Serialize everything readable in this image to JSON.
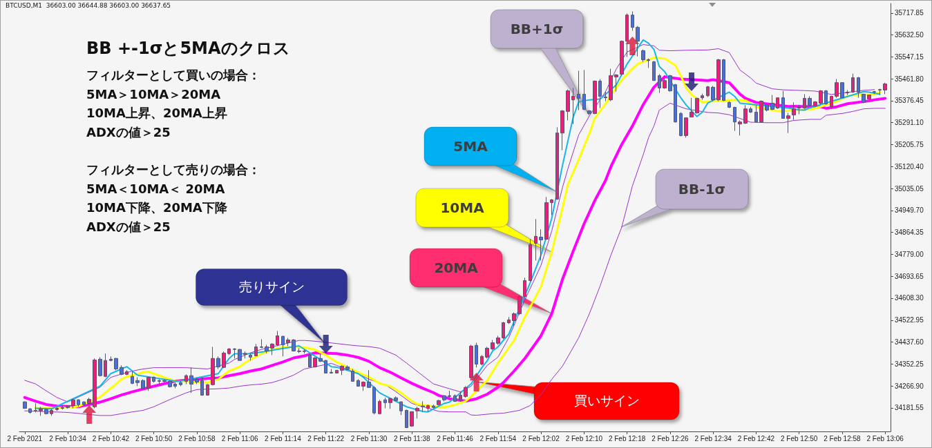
{
  "chart_data": {
    "type": "candlestick",
    "title": "BB +-1σと5MAのクロス",
    "annotations": [
      "BTCUSD,M1  36603.00 36644.88 36603.00 36637.65",
      "フィルターとして買いの場合：\n5MA＞10MA＞20MA\n10MA上昇、20MA上昇\nADXの値＞25",
      "フィルターとして売りの場合：\n5MA＜10MA＜ 20MA\n10MA下降、20MA下降\nADXの値＞25",
      "5MA",
      "10MA",
      "20MA",
      "BB+1σ",
      "BB-1σ",
      "売りサイン",
      "買いサイン"
    ],
    "xlim": [
      "2021-02-02T10:25",
      "2021-02-02T13:07"
    ],
    "ylim": [
      34090,
      35755
    ],
    "xticks": [
      {
        "value": "2021-02-02T10:26",
        "label": "2 Feb 2021"
      },
      {
        "value": "2021-02-02T10:34",
        "label": "2 Feb 10:34"
      },
      {
        "value": "2021-02-02T10:42",
        "label": "2 Feb 10:42"
      },
      {
        "value": "2021-02-02T10:50",
        "label": "2 Feb 10:50"
      },
      {
        "value": "2021-02-02T10:58",
        "label": "2 Feb 10:58"
      },
      {
        "value": "2021-02-02T11:06",
        "label": "2 Feb 11:06"
      },
      {
        "value": "2021-02-02T11:14",
        "label": "2 Feb 11:14"
      },
      {
        "value": "2021-02-02T11:22",
        "label": "2 Feb 11:22"
      },
      {
        "value": "2021-02-02T11:30",
        "label": "2 Feb 11:30"
      },
      {
        "value": "2021-02-02T11:38",
        "label": "2 Feb 11:38"
      },
      {
        "value": "2021-02-02T11:46",
        "label": "2 Feb 11:46"
      },
      {
        "value": "2021-02-02T11:54",
        "label": "2 Feb 11:54"
      },
      {
        "value": "2021-02-02T12:02",
        "label": "2 Feb 12:02"
      },
      {
        "value": "2021-02-02T12:10",
        "label": "2 Feb 12:10"
      },
      {
        "value": "2021-02-02T12:18",
        "label": "2 Feb 12:18"
      },
      {
        "value": "2021-02-02T12:26",
        "label": "2 Feb 12:26"
      },
      {
        "value": "2021-02-02T12:34",
        "label": "2 Feb 12:34"
      },
      {
        "value": "2021-02-02T12:42",
        "label": "2 Feb 12:42"
      },
      {
        "value": "2021-02-02T12:50",
        "label": "2 Feb 12:50"
      },
      {
        "value": "2021-02-02T12:58",
        "label": "2 Feb 12:58"
      },
      {
        "value": "2021-02-02T13:06",
        "label": "2 Feb 13:06"
      }
    ],
    "yticks": [
      34181.55,
      {
        "value": 34266.9,
        "label": "34266.90"
      },
      34352.25,
      {
        "value": 34437.6,
        "label": "34437.60"
      },
      34522.95,
      {
        "value": 34608.3,
        "label": "34608.30"
      },
      34693.65,
      {
        "value": 34779,
        "label": "34779.00"
      },
      34864.35,
      {
        "value": 34949.7,
        "label": "34949.70"
      },
      35035.05,
      {
        "value": 35120.4,
        "label": "35120.40"
      },
      35205.75,
      {
        "value": 35291.1,
        "label": "35291.10"
      },
      35376.45,
      {
        "value": 35461.8,
        "label": "35461.80"
      },
      35547.15,
      {
        "value": 35632.5,
        "label": "35632.50"
      },
      35717.85
    ],
    "x": [
      "2021-02-02T10:26",
      "2021-02-02T10:27",
      "2021-02-02T10:28",
      "2021-02-02T10:29",
      "2021-02-02T10:30",
      "2021-02-02T10:31",
      "2021-02-02T10:32",
      "2021-02-02T10:33",
      "2021-02-02T10:34",
      "2021-02-02T10:35",
      "2021-02-02T10:36",
      "2021-02-02T10:37",
      "2021-02-02T10:38",
      "2021-02-02T10:39",
      "2021-02-02T10:40",
      "2021-02-02T10:41",
      "2021-02-02T10:42",
      "2021-02-02T10:43",
      "2021-02-02T10:44",
      "2021-02-02T10:45",
      "2021-02-02T10:46",
      "2021-02-02T10:47",
      "2021-02-02T10:48",
      "2021-02-02T10:49",
      "2021-02-02T10:50",
      "2021-02-02T10:51",
      "2021-02-02T10:52",
      "2021-02-02T10:53",
      "2021-02-02T10:54",
      "2021-02-02T10:55",
      "2021-02-02T10:56",
      "2021-02-02T10:57",
      "2021-02-02T10:58",
      "2021-02-02T10:59",
      "2021-02-02T11:00",
      "2021-02-02T11:01",
      "2021-02-02T11:02",
      "2021-02-02T11:03",
      "2021-02-02T11:04",
      "2021-02-02T11:05",
      "2021-02-02T11:06",
      "2021-02-02T11:07",
      "2021-02-02T11:08",
      "2021-02-02T11:09",
      "2021-02-02T11:10",
      "2021-02-02T11:11",
      "2021-02-02T11:12",
      "2021-02-02T11:13",
      "2021-02-02T11:14",
      "2021-02-02T11:15",
      "2021-02-02T11:16",
      "2021-02-02T11:17",
      "2021-02-02T11:18",
      "2021-02-02T11:19",
      "2021-02-02T11:20",
      "2021-02-02T11:21",
      "2021-02-02T11:22",
      "2021-02-02T11:23",
      "2021-02-02T11:24",
      "2021-02-02T11:25",
      "2021-02-02T11:26",
      "2021-02-02T11:27",
      "2021-02-02T11:28",
      "2021-02-02T11:29",
      "2021-02-02T11:30",
      "2021-02-02T11:31",
      "2021-02-02T11:32",
      "2021-02-02T11:33",
      "2021-02-02T11:34",
      "2021-02-02T11:35",
      "2021-02-02T11:36",
      "2021-02-02T11:37",
      "2021-02-02T11:38",
      "2021-02-02T11:39",
      "2021-02-02T11:40",
      "2021-02-02T11:41",
      "2021-02-02T11:42",
      "2021-02-02T11:43",
      "2021-02-02T11:44",
      "2021-02-02T11:45",
      "2021-02-02T11:46",
      "2021-02-02T11:47",
      "2021-02-02T11:48",
      "2021-02-02T11:49",
      "2021-02-02T11:50",
      "2021-02-02T11:51",
      "2021-02-02T11:52",
      "2021-02-02T11:53",
      "2021-02-02T11:54",
      "2021-02-02T11:55",
      "2021-02-02T11:56",
      "2021-02-02T11:57",
      "2021-02-02T11:58",
      "2021-02-02T11:59",
      "2021-02-02T12:00",
      "2021-02-02T12:01",
      "2021-02-02T12:02",
      "2021-02-02T12:03",
      "2021-02-02T12:04",
      "2021-02-02T12:05",
      "2021-02-02T12:06",
      "2021-02-02T12:07",
      "2021-02-02T12:08",
      "2021-02-02T12:09",
      "2021-02-02T12:10",
      "2021-02-02T12:11",
      "2021-02-02T12:12",
      "2021-02-02T12:13",
      "2021-02-02T12:14",
      "2021-02-02T12:15",
      "2021-02-02T12:16",
      "2021-02-02T12:17",
      "2021-02-02T12:18",
      "2021-02-02T12:19",
      "2021-02-02T12:20",
      "2021-02-02T12:21",
      "2021-02-02T12:22",
      "2021-02-02T12:23",
      "2021-02-02T12:24",
      "2021-02-02T12:25",
      "2021-02-02T12:26",
      "2021-02-02T12:27",
      "2021-02-02T12:28",
      "2021-02-02T12:29",
      "2021-02-02T12:30",
      "2021-02-02T12:31",
      "2021-02-02T12:32",
      "2021-02-02T12:33",
      "2021-02-02T12:34",
      "2021-02-02T12:35",
      "2021-02-02T12:36",
      "2021-02-02T12:37",
      "2021-02-02T12:38",
      "2021-02-02T12:39",
      "2021-02-02T12:40",
      "2021-02-02T12:41",
      "2021-02-02T12:42",
      "2021-02-02T12:43",
      "2021-02-02T12:44",
      "2021-02-02T12:45",
      "2021-02-02T12:46",
      "2021-02-02T12:47",
      "2021-02-02T12:48",
      "2021-02-02T12:49",
      "2021-02-02T12:50",
      "2021-02-02T12:51",
      "2021-02-02T12:52",
      "2021-02-02T12:53",
      "2021-02-02T12:54",
      "2021-02-02T12:55",
      "2021-02-02T12:56",
      "2021-02-02T12:57",
      "2021-02-02T12:58",
      "2021-02-02T12:59",
      "2021-02-02T13:00",
      "2021-02-02T13:01",
      "2021-02-02T13:02",
      "2021-02-02T13:03",
      "2021-02-02T13:04",
      "2021-02-02T13:05",
      "2021-02-02T13:06"
    ],
    "ohlc": [
      [
        34205,
        34207,
        34178,
        34180
      ],
      [
        34178,
        34180,
        34159,
        34164
      ],
      [
        34172,
        34199,
        34164,
        34170
      ],
      [
        34170,
        34186,
        34151,
        34178
      ],
      [
        34175,
        34180,
        34156,
        34159
      ],
      [
        34159,
        34178,
        34151,
        34172
      ],
      [
        34175,
        34186,
        34170,
        34180
      ],
      [
        34180,
        34189,
        34175,
        34183
      ],
      [
        34183,
        34191,
        34178,
        34189
      ],
      [
        34191,
        34218,
        34180,
        34213
      ],
      [
        34213,
        34215,
        34186,
        34194
      ],
      [
        34205,
        34207,
        34191,
        34194
      ],
      [
        34199,
        34221,
        34194,
        34215
      ],
      [
        34186,
        34374,
        34180,
        34368
      ],
      [
        34371,
        34379,
        34304,
        34307
      ],
      [
        34304,
        34393,
        34301,
        34366
      ],
      [
        34366,
        34382,
        34363,
        34371
      ],
      [
        34374,
        34376,
        34328,
        34333
      ],
      [
        34339,
        34347,
        34309,
        34312
      ],
      [
        34312,
        34328,
        34309,
        34323
      ],
      [
        34304,
        34325,
        34274,
        34277
      ],
      [
        34288,
        34301,
        34266,
        34280
      ],
      [
        34288,
        34293,
        34258,
        34258
      ],
      [
        34258,
        34301,
        34248,
        34301
      ],
      [
        34301,
        34304,
        34280,
        34285
      ],
      [
        34285,
        34293,
        34274,
        34288
      ],
      [
        34288,
        34293,
        34280,
        34285
      ],
      [
        34285,
        34288,
        34261,
        34264
      ],
      [
        34274,
        34280,
        34258,
        34266
      ],
      [
        34280,
        34285,
        34266,
        34272
      ],
      [
        34285,
        34312,
        34274,
        34307
      ],
      [
        34307,
        34339,
        34240,
        34274
      ],
      [
        34293,
        34299,
        34274,
        34282
      ],
      [
        34288,
        34301,
        34229,
        34231
      ],
      [
        34231,
        34274,
        34229,
        34272
      ],
      [
        34272,
        34419,
        34269,
        34374
      ],
      [
        34374,
        34382,
        34333,
        34341
      ],
      [
        34339,
        34401,
        34336,
        34395
      ],
      [
        34393,
        34414,
        34387,
        34411
      ],
      [
        34411,
        34414,
        34374,
        34409
      ],
      [
        34409,
        34411,
        34366,
        34366
      ],
      [
        34390,
        34401,
        34374,
        34393
      ],
      [
        34387,
        34393,
        34366,
        34379
      ],
      [
        34384,
        34430,
        34382,
        34419
      ],
      [
        34419,
        34449,
        34414,
        34417
      ],
      [
        34419,
        34427,
        34393,
        34403
      ],
      [
        34414,
        34433,
        34387,
        34430
      ],
      [
        34427,
        34481,
        34422,
        34462
      ],
      [
        34460,
        34462,
        34382,
        34427
      ],
      [
        34435,
        34454,
        34422,
        34446
      ],
      [
        34446,
        34449,
        34401,
        34403
      ],
      [
        34403,
        34414,
        34395,
        34401
      ],
      [
        34401,
        34409,
        34393,
        34403
      ],
      [
        34387,
        34393,
        34339,
        34341
      ],
      [
        34341,
        34379,
        34339,
        34376
      ],
      [
        34374,
        34393,
        34360,
        34363
      ],
      [
        34366,
        34368,
        34317,
        34317
      ],
      [
        34320,
        34333,
        34315,
        34317
      ],
      [
        34317,
        34328,
        34315,
        34328
      ],
      [
        34328,
        34347,
        34309,
        34344
      ],
      [
        34341,
        34347,
        34328,
        34331
      ],
      [
        34325,
        34333,
        34285,
        34285
      ],
      [
        34288,
        34293,
        34264,
        34266
      ],
      [
        34266,
        34285,
        34248,
        34282
      ],
      [
        34282,
        34328,
        34261,
        34261
      ],
      [
        34261,
        34266,
        34156,
        34162
      ],
      [
        34159,
        34213,
        34156,
        34207
      ],
      [
        34213,
        34221,
        34180,
        34202
      ],
      [
        34202,
        34221,
        34178,
        34218
      ],
      [
        34221,
        34226,
        34207,
        34210
      ],
      [
        34205,
        34207,
        34154,
        34170
      ],
      [
        34172,
        34175,
        34103,
        34105
      ],
      [
        34111,
        34167,
        34108,
        34167
      ],
      [
        34170,
        34186,
        34140,
        34180
      ],
      [
        34189,
        34207,
        34167,
        34186
      ],
      [
        34180,
        34194,
        34167,
        34191
      ],
      [
        34189,
        34194,
        34180,
        34183
      ],
      [
        34194,
        34213,
        34191,
        34210
      ],
      [
        34229,
        34231,
        34207,
        34213
      ],
      [
        34229,
        34248,
        34221,
        34226
      ],
      [
        34229,
        34234,
        34205,
        34207
      ],
      [
        34213,
        34245,
        34207,
        34231
      ],
      [
        34226,
        34266,
        34221,
        34261
      ],
      [
        34299,
        34427,
        34293,
        34422
      ],
      [
        34425,
        34435,
        34339,
        34352
      ],
      [
        34352,
        34387,
        34347,
        34382
      ],
      [
        34379,
        34419,
        34374,
        34414
      ],
      [
        34411,
        34446,
        34406,
        34435
      ],
      [
        34433,
        34462,
        34427,
        34454
      ],
      [
        34454,
        34516,
        34449,
        34513
      ],
      [
        34513,
        34535,
        34508,
        34524
      ],
      [
        34521,
        34553,
        34500,
        34548
      ],
      [
        34548,
        34621,
        34543,
        34615
      ],
      [
        34615,
        34688,
        34610,
        34677
      ],
      [
        34677,
        34838,
        34674,
        34817
      ],
      [
        34822,
        34916,
        34755,
        34849
      ],
      [
        34846,
        34876,
        34755,
        34835
      ],
      [
        34838,
        35002,
        34835,
        34980
      ],
      [
        34980,
        34994,
        34932,
        34991
      ],
      [
        34994,
        35273,
        34991,
        35251
      ],
      [
        35251,
        35340,
        35184,
        35337
      ],
      [
        35335,
        35420,
        35300,
        35415
      ],
      [
        35380,
        35426,
        35286,
        35394
      ],
      [
        35402,
        35493,
        35340,
        35386
      ],
      [
        35402,
        35496,
        35340,
        35343
      ],
      [
        35337,
        35340,
        35324,
        35327
      ],
      [
        35327,
        35455,
        35324,
        35453
      ],
      [
        35453,
        35461,
        35348,
        35394
      ],
      [
        35388,
        35412,
        35375,
        35391
      ],
      [
        35380,
        35501,
        35375,
        35474
      ],
      [
        35469,
        35480,
        35412,
        35477
      ],
      [
        35480,
        35611,
        35474,
        35608
      ],
      [
        35608,
        35716,
        35547,
        35710
      ],
      [
        35710,
        35724,
        35649,
        35662
      ],
      [
        35662,
        35667,
        35549,
        35608
      ],
      [
        35571,
        35576,
        35528,
        35536
      ],
      [
        35536,
        35541,
        35504,
        35533
      ],
      [
        35528,
        35531,
        35455,
        35455
      ],
      [
        35474,
        35480,
        35407,
        35426
      ],
      [
        35426,
        35474,
        35423,
        35455
      ],
      [
        35474,
        35477,
        35412,
        35415
      ],
      [
        35439,
        35442,
        35292,
        35294
      ],
      [
        35327,
        35332,
        35238,
        35241
      ],
      [
        35241,
        35310,
        35233,
        35310
      ],
      [
        35313,
        35388,
        35313,
        35332
      ],
      [
        35329,
        35388,
        35327,
        35386
      ],
      [
        35388,
        35404,
        35380,
        35396
      ],
      [
        35396,
        35434,
        35391,
        35431
      ],
      [
        35429,
        35434,
        35375,
        35380
      ],
      [
        35380,
        35539,
        35375,
        35536
      ],
      [
        35536,
        35539,
        35375,
        35378
      ],
      [
        35370,
        35375,
        35348,
        35351
      ],
      [
        35351,
        35353,
        35259,
        35294
      ],
      [
        35286,
        35300,
        35241,
        35294
      ],
      [
        35289,
        35359,
        35286,
        35345
      ],
      [
        35345,
        35353,
        35329,
        35332
      ],
      [
        35332,
        35359,
        35292,
        35294
      ],
      [
        35294,
        35378,
        35292,
        35375
      ],
      [
        35361,
        35367,
        35335,
        35340
      ],
      [
        35367,
        35399,
        35340,
        35343
      ],
      [
        35348,
        35388,
        35345,
        35388
      ],
      [
        35388,
        35415,
        35308,
        35308
      ],
      [
        35308,
        35329,
        35251,
        35318
      ],
      [
        35321,
        35370,
        35302,
        35345
      ],
      [
        35348,
        35361,
        35324,
        35351
      ],
      [
        35348,
        35402,
        35345,
        35386
      ],
      [
        35386,
        35394,
        35356,
        35359
      ],
      [
        35356,
        35375,
        35353,
        35372
      ],
      [
        35367,
        35418,
        35361,
        35415
      ],
      [
        35415,
        35418,
        35361,
        35364
      ],
      [
        35353,
        35396,
        35351,
        35394
      ],
      [
        35394,
        35461,
        35388,
        35447
      ],
      [
        35447,
        35447,
        35386,
        35388
      ],
      [
        35407,
        35418,
        35399,
        35410
      ],
      [
        35410,
        35482,
        35407,
        35466
      ],
      [
        35466,
        35469,
        35388,
        35410
      ],
      [
        35402,
        35404,
        35367,
        35370
      ],
      [
        35383,
        35399,
        35380,
        35399
      ],
      [
        35410,
        35415,
        35402,
        35412
      ],
      [
        35418,
        35423,
        35399,
        35420
      ],
      [
        35418,
        35447,
        35402,
        35442
      ]
    ],
    "colors": [
      "#4a6fd6",
      "#4a6fd6",
      "#4a6fd6",
      "#ec1e79",
      "#4a6fd6",
      "#ec1e79",
      "#ec1e79",
      "#ec1e79",
      "#ec1e79",
      "#ec1e79",
      "#4a6fd6",
      "#4a6fd6",
      "#ec1e79",
      "#ec1e79",
      "#4a6fd6",
      "#ec1e79",
      "#ec1e79",
      "#4a6fd6",
      "#4a6fd6",
      "#ec1e79",
      "#4a6fd6",
      "#4a6fd6",
      "#4a6fd6",
      "#ec1e79",
      "#4a6fd6",
      "#ec1e79",
      "#4a6fd6",
      "#4a6fd6",
      "#4a6fd6",
      "#4a6fd6",
      "#ec1e79",
      "#4a6fd6",
      "#4a6fd6",
      "#4a6fd6",
      "#ec1e79",
      "#ec1e79",
      "#4a6fd6",
      "#ec1e79",
      "#ec1e79",
      "#4a6fd6",
      "#4a6fd6",
      "#ec1e79",
      "#4a6fd6",
      "#ec1e79",
      "#4a6fd6",
      "#4a6fd6",
      "#ec1e79",
      "#ec1e79",
      "#4a6fd6",
      "#ec1e79",
      "#4a6fd6",
      "#4a6fd6",
      "#ec1e79",
      "#4a6fd6",
      "#ec1e79",
      "#4a6fd6",
      "#4a6fd6",
      "#4a6fd6",
      "#ec1e79",
      "#ec1e79",
      "#4a6fd6",
      "#4a6fd6",
      "#4a6fd6",
      "#ec1e79",
      "#4a6fd6",
      "#4a6fd6",
      "#ec1e79",
      "#4a6fd6",
      "#ec1e79",
      "#4a6fd6",
      "#4a6fd6",
      "#4a6fd6",
      "#ec1e79",
      "#ec1e79",
      "#4a6fd6",
      "#ec1e79",
      "#4a6fd6",
      "#ec1e79",
      "#4a6fd6",
      "#4a6fd6",
      "#4a6fd6",
      "#ec1e79",
      "#ec1e79",
      "#ec1e79",
      "#4a6fd6",
      "#ec1e79",
      "#ec1e79",
      "#ec1e79",
      "#ec1e79",
      "#ec1e79",
      "#ec1e79",
      "#ec1e79",
      "#ec1e79",
      "#ec1e79",
      "#ec1e79",
      "#ec1e79",
      "#4a6fd6",
      "#ec1e79",
      "#ec1e79",
      "#ec1e79",
      "#ec1e79",
      "#ec1e79",
      "#ec1e79",
      "#4a6fd6",
      "#4a6fd6",
      "#4a6fd6",
      "#ec1e79",
      "#4a6fd6",
      "#ec1e79",
      "#ec1e79",
      "#ec1e79",
      "#ec1e79",
      "#ec1e79",
      "#4a6fd6",
      "#4a6fd6",
      "#4a6fd6",
      "#4a6fd6",
      "#4a6fd6",
      "#4a6fd6",
      "#ec1e79",
      "#4a6fd6",
      "#4a6fd6",
      "#4a6fd6",
      "#ec1e79",
      "#ec1e79",
      "#ec1e79",
      "#ec1e79",
      "#ec1e79",
      "#4a6fd6",
      "#ec1e79",
      "#4a6fd6",
      "#4a6fd6",
      "#4a6fd6",
      "#ec1e79",
      "#ec1e79",
      "#4a6fd6",
      "#4a6fd6",
      "#ec1e79",
      "#4a6fd6",
      "#4a6fd6",
      "#ec1e79",
      "#4a6fd6",
      "#ec1e79",
      "#ec1e79",
      "#ec1e79",
      "#ec1e79",
      "#4a6fd6",
      "#ec1e79",
      "#ec1e79",
      "#4a6fd6",
      "#ec1e79",
      "#ec1e79",
      "#4a6fd6",
      "#ec1e79",
      "#ec1e79",
      "#4a6fd6",
      "#4a6fd6",
      "#ec1e79",
      "#ec1e79",
      "#ec1e79",
      "#ec1e79"
    ],
    "series": [
      {
        "type": "line",
        "color": "#ff00ff",
        "x": [
          "2021-02-02T10:26",
          "2021-02-02T10:28",
          "2021-02-02T10:30",
          "2021-02-02T10:32",
          "2021-02-02T10:36",
          "2021-02-02T10:40",
          "2021-02-02T10:42",
          "2021-02-02T10:44",
          "2021-02-02T10:46",
          "2021-02-02T10:50",
          "2021-02-02T10:54",
          "2021-02-02T11:00",
          "2021-02-02T11:02",
          "2021-02-02T11:04",
          "2021-02-02T11:06",
          "2021-02-02T11:08",
          "2021-02-02T11:10",
          "2021-02-02T11:12",
          "2021-02-02T11:14",
          "2021-02-02T11:16",
          "2021-02-02T11:18",
          "2021-02-02T11:20",
          "2021-02-02T11:24",
          "2021-02-02T11:26",
          "2021-02-02T11:28",
          "2021-02-02T11:30",
          "2021-02-02T11:32",
          "2021-02-02T11:34",
          "2021-02-02T11:36",
          "2021-02-02T11:38",
          "2021-02-02T11:40",
          "2021-02-02T11:42",
          "2021-02-02T11:43",
          "2021-02-02T11:45",
          "2021-02-02T11:48",
          "2021-02-02T11:50",
          "2021-02-02T11:52",
          "2021-02-02T11:54",
          "2021-02-02T11:55",
          "2021-02-02T11:57",
          "2021-02-02T11:59",
          "2021-02-02T12:02",
          "2021-02-02T12:04",
          "2021-02-02T12:06",
          "2021-02-02T12:08",
          "2021-02-02T12:10",
          "2021-02-02T12:12",
          "2021-02-02T12:14",
          "2021-02-02T12:15",
          "2021-02-02T12:17",
          "2021-02-02T12:19",
          "2021-02-02T12:21",
          "2021-02-02T12:23",
          "2021-02-02T12:25",
          "2021-02-02T12:28",
          "2021-02-02T12:33",
          "2021-02-02T12:34",
          "2021-02-02T12:37",
          "2021-02-02T12:39",
          "2021-02-02T12:40",
          "2021-02-02T12:42",
          "2021-02-02T12:48",
          "2021-02-02T12:49",
          "2021-02-02T12:54",
          "2021-02-02T12:55",
          "2021-02-02T12:57",
          "2021-02-02T12:59",
          "2021-02-02T13:03",
          "2021-02-02T13:04",
          "2021-02-02T13:06"
        ],
        "values": [
          34222,
          34208,
          34195,
          34189,
          34186,
          34204,
          34217,
          34232,
          34244,
          34266,
          34286,
          34296,
          34298,
          34307,
          34315,
          34325,
          34333,
          34347,
          34360,
          34376,
          34384,
          34396,
          34393,
          34387,
          34378,
          34363,
          34338,
          34320,
          34298,
          34277,
          34258,
          34241,
          34230,
          34217,
          34208,
          34217,
          34235,
          34262,
          34280,
          34325,
          34374,
          34462,
          34548,
          34682,
          34792,
          34897,
          34988,
          35066,
          35120,
          35206,
          35278,
          35361,
          35429,
          35470,
          35461,
          35455,
          35458,
          35447,
          35402,
          35386,
          35370,
          35354,
          35355,
          35353,
          35347,
          35353,
          35365,
          35376,
          35380,
          35386
        ]
      },
      {
        "type": "line",
        "color": "#9932cc",
        "x": [
          "2021-02-02T10:26",
          "2021-02-02T10:28",
          "2021-02-02T10:30",
          "2021-02-02T10:32",
          "2021-02-02T10:34",
          "2021-02-02T10:40",
          "2021-02-02T10:42",
          "2021-02-02T10:43",
          "2021-02-02T10:46",
          "2021-02-02T10:48",
          "2021-02-02T10:50",
          "2021-02-02T10:56",
          "2021-02-02T11:00",
          "2021-02-02T11:04",
          "2021-02-02T11:05",
          "2021-02-02T11:08",
          "2021-02-02T11:10",
          "2021-02-02T11:17",
          "2021-02-02T11:18",
          "2021-02-02T11:20",
          "2021-02-02T11:24",
          "2021-02-02T11:26",
          "2021-02-02T11:28",
          "2021-02-02T11:30",
          "2021-02-02T11:32",
          "2021-02-02T11:35",
          "2021-02-02T11:37",
          "2021-02-02T11:40",
          "2021-02-02T11:42",
          "2021-02-02T11:45",
          "2021-02-02T11:47",
          "2021-02-02T11:49",
          "2021-02-02T11:52",
          "2021-02-02T11:54",
          "2021-02-02T11:56",
          "2021-02-02T11:59",
          "2021-02-02T12:02",
          "2021-02-02T12:04",
          "2021-02-02T12:06",
          "2021-02-02T12:07",
          "2021-02-02T12:09",
          "2021-02-02T12:11",
          "2021-02-02T12:14",
          "2021-02-02T12:16",
          "2021-02-02T12:18",
          "2021-02-02T12:21",
          "2021-02-02T12:23",
          "2021-02-02T12:24",
          "2021-02-02T12:26",
          "2021-02-02T12:29",
          "2021-02-02T12:33",
          "2021-02-02T12:35",
          "2021-02-02T12:37",
          "2021-02-02T12:39",
          "2021-02-02T12:41",
          "2021-02-02T12:42",
          "2021-02-02T12:45",
          "2021-02-02T12:47",
          "2021-02-02T12:51",
          "2021-02-02T12:53",
          "2021-02-02T12:56",
          "2021-02-02T13:02",
          "2021-02-02T13:03",
          "2021-02-02T13:04"
        ],
        "values": [
          34289,
          34275,
          34248,
          34222,
          34205,
          34262,
          34300,
          34307,
          34325,
          34333,
          34338,
          34338,
          34333,
          34356,
          34370,
          34396,
          34409,
          34444,
          34444,
          34441,
          34432,
          34427,
          34423,
          34420,
          34414,
          34387,
          34356,
          34307,
          34275,
          34256,
          34244,
          34266,
          34347,
          34379,
          34454,
          34602,
          34736,
          34870,
          35039,
          35112,
          35243,
          35318,
          35412,
          35500,
          35566,
          35595,
          35590,
          35573,
          35571,
          35573,
          35574,
          35579,
          35564,
          35496,
          35465,
          35445,
          35423,
          35419,
          35416,
          35414,
          35401,
          35417,
          35418,
          35420
        ]
      },
      {
        "type": "line",
        "color": "#9932cc",
        "x": [
          "2021-02-02T10:26",
          "2021-02-02T10:34",
          "2021-02-02T10:40",
          "2021-02-02T10:42",
          "2021-02-02T10:44",
          "2021-02-02T10:46",
          "2021-02-02T10:48",
          "2021-02-02T10:50",
          "2021-02-02T10:52",
          "2021-02-02T10:54",
          "2021-02-02T10:56",
          "2021-02-02T10:58",
          "2021-02-02T11:02",
          "2021-02-02T11:04",
          "2021-02-02T11:06",
          "2021-02-02T11:08",
          "2021-02-02T11:10",
          "2021-02-02T11:12",
          "2021-02-02T11:14",
          "2021-02-02T11:16",
          "2021-02-02T11:18",
          "2021-02-02T11:23",
          "2021-02-02T11:24",
          "2021-02-02T11:28",
          "2021-02-02T11:30",
          "2021-02-02T11:33",
          "2021-02-02T11:35",
          "2021-02-02T11:38",
          "2021-02-02T11:43",
          "2021-02-02T11:45",
          "2021-02-02T11:48",
          "2021-02-02T11:49",
          "2021-02-02T11:50",
          "2021-02-02T11:53",
          "2021-02-02T11:55",
          "2021-02-02T11:58",
          "2021-02-02T12:00",
          "2021-02-02T12:02",
          "2021-02-02T12:04",
          "2021-02-02T12:06",
          "2021-02-02T12:09",
          "2021-02-02T12:11",
          "2021-02-02T12:13",
          "2021-02-02T12:15",
          "2021-02-02T12:17",
          "2021-02-02T12:19",
          "2021-02-02T12:21",
          "2021-02-02T12:22",
          "2021-02-02T12:23",
          "2021-02-02T12:24",
          "2021-02-02T12:26",
          "2021-02-02T12:29",
          "2021-02-02T12:33",
          "2021-02-02T12:35",
          "2021-02-02T12:37",
          "2021-02-02T12:41",
          "2021-02-02T12:44",
          "2021-02-02T12:47",
          "2021-02-02T12:49",
          "2021-02-02T12:52",
          "2021-02-02T12:54",
          "2021-02-02T12:55",
          "2021-02-02T12:58",
          "2021-02-02T13:00",
          "2021-02-02T13:02",
          "2021-02-02T13:04",
          "2021-02-02T13:06"
        ],
        "values": [
          34170,
          34164,
          34152,
          34152,
          34159,
          34166,
          34172,
          34186,
          34205,
          34223,
          34240,
          34253,
          34256,
          34259,
          34266,
          34271,
          34274,
          34280,
          34293,
          34309,
          34333,
          34355,
          34347,
          34315,
          34293,
          34272,
          34245,
          34199,
          34168,
          34166,
          34166,
          34154,
          34153,
          34159,
          34161,
          34172,
          34191,
          34234,
          34293,
          34344,
          34454,
          34548,
          34656,
          34776,
          34884,
          35045,
          35166,
          35233,
          35278,
          35340,
          35367,
          35345,
          35331,
          35329,
          35322,
          35293,
          35291,
          35291,
          35300,
          35304,
          35304,
          35320,
          35327,
          35335,
          35345,
          35347,
          35347
        ]
      },
      {
        "type": "line",
        "color": "#ffff00",
        "x": [
          "2021-02-02T10:28",
          "2021-02-02T10:31",
          "2021-02-02T10:35",
          "2021-02-02T10:36",
          "2021-02-02T10:40",
          "2021-02-02T10:42",
          "2021-02-02T10:43",
          "2021-02-02T10:44",
          "2021-02-02T10:45",
          "2021-02-02T10:47",
          "2021-02-02T10:48",
          "2021-02-02T10:49",
          "2021-02-02T10:50",
          "2021-02-02T10:52",
          "2021-02-02T10:54",
          "2021-02-02T11:00",
          "2021-02-02T11:02",
          "2021-02-02T11:04",
          "2021-02-02T11:06",
          "2021-02-02T11:07",
          "2021-02-02T11:10",
          "2021-02-02T11:12",
          "2021-02-02T11:14",
          "2021-02-02T11:15",
          "2021-02-02T11:18",
          "2021-02-02T11:20",
          "2021-02-02T11:22",
          "2021-02-02T11:24",
          "2021-02-02T11:28",
          "2021-02-02T11:30",
          "2021-02-02T11:32",
          "2021-02-02T11:34",
          "2021-02-02T11:36",
          "2021-02-02T11:38",
          "2021-02-02T11:39",
          "2021-02-02T11:43",
          "2021-02-02T11:44",
          "2021-02-02T11:46",
          "2021-02-02T11:48",
          "2021-02-02T11:49",
          "2021-02-02T11:52",
          "2021-02-02T11:54",
          "2021-02-02T11:57",
          "2021-02-02T11:59",
          "2021-02-02T12:02",
          "2021-02-02T12:04",
          "2021-02-02T12:06",
          "2021-02-02T12:07",
          "2021-02-02T12:09",
          "2021-02-02T12:11",
          "2021-02-02T12:12",
          "2021-02-02T12:14",
          "2021-02-02T12:16",
          "2021-02-02T12:17",
          "2021-02-02T12:19",
          "2021-02-02T12:20",
          "2021-02-02T12:23",
          "2021-02-02T12:25",
          "2021-02-02T12:27",
          "2021-02-02T12:28",
          "2021-02-02T12:29",
          "2021-02-02T12:30",
          "2021-02-02T12:32",
          "2021-02-02T12:34",
          "2021-02-02T12:38",
          "2021-02-02T12:40",
          "2021-02-02T12:42",
          "2021-02-02T12:46",
          "2021-02-02T12:48",
          "2021-02-02T12:50",
          "2021-02-02T12:52",
          "2021-02-02T12:54",
          "2021-02-02T12:57",
          "2021-02-02T12:59",
          "2021-02-02T13:01",
          "2021-02-02T13:04",
          "2021-02-02T13:05"
        ],
        "values": [
          34181,
          34180,
          34184,
          34188,
          34223,
          34258,
          34274,
          34293,
          34303,
          34314,
          34320,
          34322,
          34315,
          34300,
          34286,
          34280,
          34293,
          34325,
          34342,
          34358,
          34392,
          34408,
          34417,
          34419,
          34417,
          34408,
          34387,
          34360,
          34320,
          34302,
          34277,
          34266,
          34240,
          34208,
          34196,
          34185,
          34184,
          34193,
          34208,
          34226,
          34288,
          34356,
          34444,
          34535,
          34653,
          34787,
          34959,
          35050,
          35147,
          35249,
          35308,
          35364,
          35428,
          35456,
          35501,
          35520,
          35544,
          35541,
          35514,
          35474,
          35426,
          35400,
          35371,
          35374,
          35380,
          35378,
          35353,
          35336,
          35338,
          35342,
          35342,
          35353,
          35374,
          35395,
          35400,
          35401,
          35410
        ]
      },
      {
        "type": "line",
        "color": "#18b4ec",
        "x": [
          "2021-02-02T10:28",
          "2021-02-02T10:31",
          "2021-02-02T10:40",
          "2021-02-02T10:41",
          "2021-02-02T10:42",
          "2021-02-02T10:45",
          "2021-02-02T10:46",
          "2021-02-02T10:47",
          "2021-02-02T10:54",
          "2021-02-02T10:55",
          "2021-02-02T11:02",
          "2021-02-02T11:04",
          "2021-02-02T11:05",
          "2021-02-02T11:08",
          "2021-02-02T11:10",
          "2021-02-02T11:17",
          "2021-02-02T11:19",
          "2021-02-02T11:20",
          "2021-02-02T11:23",
          "2021-02-02T11:24",
          "2021-02-02T11:28",
          "2021-02-02T11:29",
          "2021-02-02T11:32",
          "2021-02-02T11:37",
          "2021-02-02T11:40",
          "2021-02-02T11:41",
          "2021-02-02T11:44",
          "2021-02-02T11:45",
          "2021-02-02T11:49",
          "2021-02-02T11:51",
          "2021-02-02T11:52",
          "2021-02-02T11:53",
          "2021-02-02T11:54",
          "2021-02-02T11:55",
          "2021-02-02T11:56",
          "2021-02-02T12:00",
          "2021-02-02T12:01",
          "2021-02-02T12:02",
          "2021-02-02T12:04",
          "2021-02-02T12:06",
          "2021-02-02T12:07",
          "2021-02-02T12:08",
          "2021-02-02T12:09",
          "2021-02-02T12:11",
          "2021-02-02T12:13",
          "2021-02-02T12:16",
          "2021-02-02T12:18",
          "2021-02-02T12:21",
          "2021-02-02T12:22",
          "2021-02-02T12:23",
          "2021-02-02T12:24",
          "2021-02-02T12:25",
          "2021-02-02T12:28",
          "2021-02-02T12:29",
          "2021-02-02T12:31",
          "2021-02-02T12:32",
          "2021-02-02T12:33",
          "2021-02-02T12:37",
          "2021-02-02T12:38",
          "2021-02-02T12:39",
          "2021-02-02T12:48",
          "2021-02-02T12:50",
          "2021-02-02T12:51",
          "2021-02-02T12:52",
          "2021-02-02T13:02",
          "2021-02-02T13:03",
          "2021-02-02T13:05"
        ],
        "values": [
          34180,
          34178,
          34266,
          34290,
          34315,
          34342,
          34325,
          34309,
          34286,
          34286,
          34315,
          34374,
          34392,
          34393,
          34399,
          34423,
          34396,
          34383,
          34342,
          34340,
          34315,
          34300,
          34240,
          34186,
          34168,
          34166,
          34199,
          34204,
          34275,
          34338,
          34365,
          34403,
          34419,
          34444,
          34468,
          34669,
          34722,
          34776,
          34919,
          35125,
          35219,
          35313,
          35372,
          35380,
          35383,
          35438,
          35519,
          35613,
          35600,
          35576,
          35510,
          35490,
          35388,
          35360,
          35315,
          35332,
          35367,
          35410,
          35394,
          35367,
          35348,
          35341,
          35340,
          35349,
          35412,
          35410,
          35402
        ]
      },
      {
        "type": "scatter",
        "color": "#dc143c",
        "marker": "triangle",
        "x": [
          "2021-02-02T10:38",
          "2021-02-02T11:50",
          "2021-02-02T12:19"
        ],
        "values": [
          34156,
          34282,
          35590
        ]
      },
      {
        "type": "scatter",
        "color": "#191970",
        "marker": "triangle",
        "x": [
          "2021-02-02T11:22",
          "2021-02-02T12:30"
        ],
        "values": [
          34430,
          35450
        ]
      }
    ]
  }
}
